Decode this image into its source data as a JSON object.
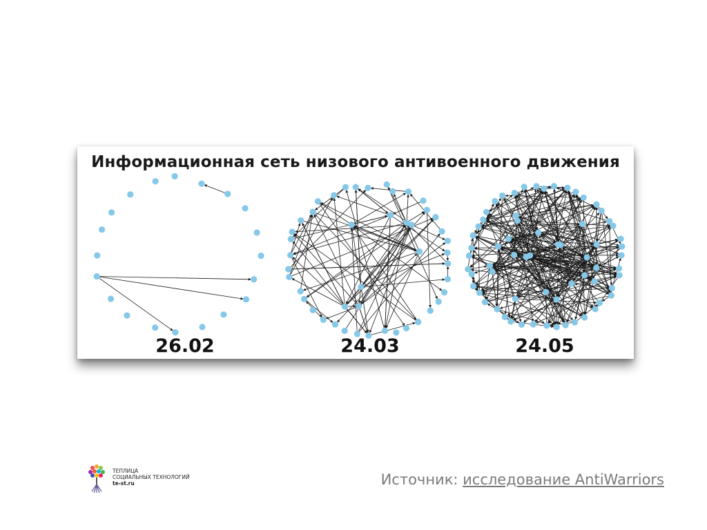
{
  "figure": {
    "title": "Информационная сеть низового антивоенного движения",
    "graphs": [
      {
        "date_label": "26.02"
      },
      {
        "date_label": "24.03"
      },
      {
        "date_label": "24.05"
      }
    ]
  },
  "footer": {
    "logo_lines": [
      "ТЕПЛИЦА",
      "СОЦИАЛЬНЫХ ТЕХНОЛОГИЙ",
      "te-st.ru"
    ],
    "source_prefix": "Источник: ",
    "source_link_text": "исследование AntiWarriors"
  },
  "colors": {
    "node": "#86c8e8",
    "edge": "#1a1a1a",
    "title": "#1a1a1a",
    "source_text": "#7a7a7a"
  },
  "icons": {
    "logo": "tree-logo-icon"
  }
}
